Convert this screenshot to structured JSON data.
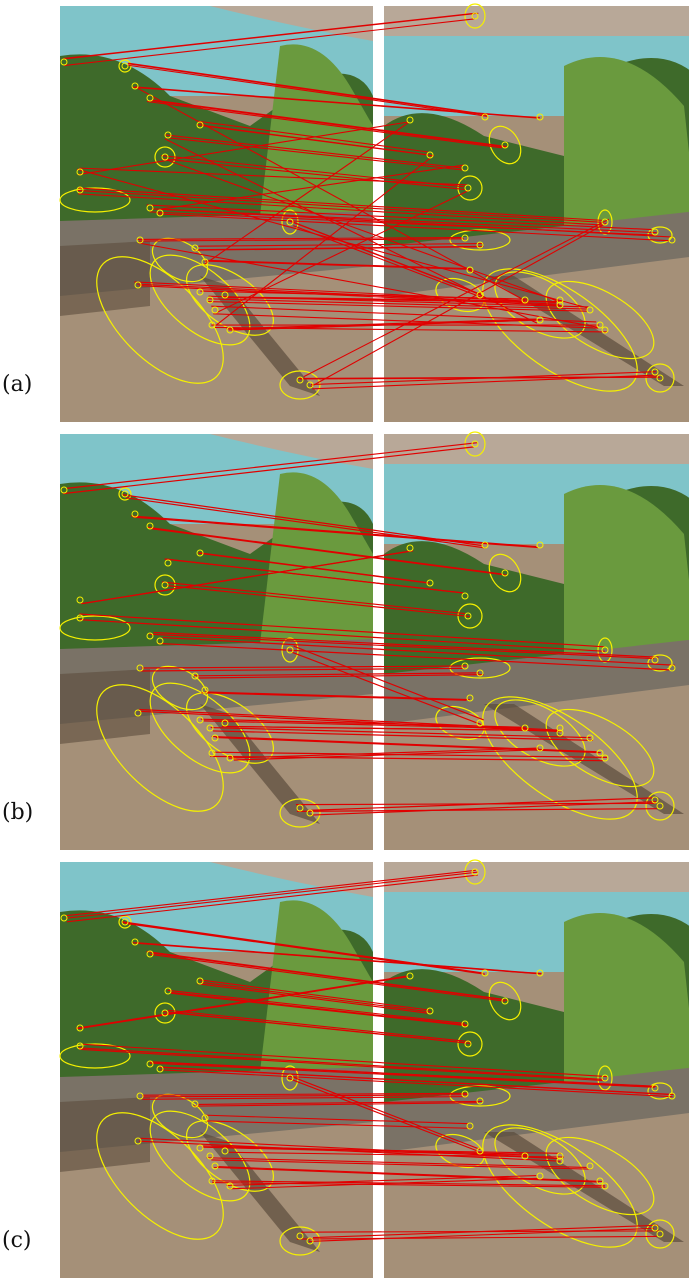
{
  "figure": {
    "panels": [
      {
        "id": "a",
        "label": "(a)"
      },
      {
        "id": "b",
        "label": "(b)"
      },
      {
        "id": "c",
        "label": "(c)"
      }
    ],
    "colors": {
      "sea": "#7fc4c9",
      "sea_light": "#a8d8d8",
      "sky_haze": "#c9dde0",
      "town": "#b8a898",
      "vegetation": "#3e6a2a",
      "vegetation_light": "#6a9a3e",
      "wall": "#7a7266",
      "terrace": "#a59078",
      "shadow": "#5b4c3c",
      "ellipse": "#f5f000",
      "match_line": "#e00000"
    }
  }
}
